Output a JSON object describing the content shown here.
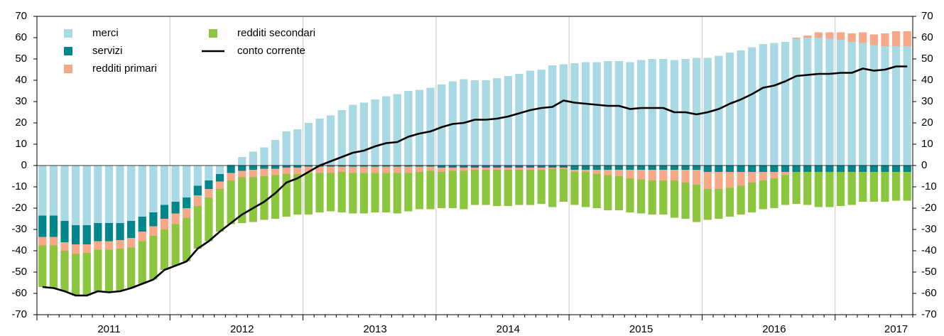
{
  "chart_data": {
    "type": "bar",
    "stacked": true,
    "legend": "upper left",
    "categories": [
      null,
      null,
      null,
      null,
      null,
      null,
      "2011",
      null,
      null,
      null,
      null,
      null,
      null,
      null,
      null,
      null,
      null,
      null,
      "2012",
      null,
      null,
      null,
      null,
      null,
      null,
      null,
      null,
      null,
      null,
      null,
      "2013",
      null,
      null,
      null,
      null,
      null,
      null,
      null,
      null,
      null,
      null,
      null,
      "2014",
      null,
      null,
      null,
      null,
      null,
      null,
      null,
      null,
      null,
      null,
      null,
      "2015",
      null,
      null,
      null,
      null,
      null,
      null,
      null,
      null,
      null,
      null,
      null,
      "2016",
      null,
      null,
      null,
      null,
      null,
      null,
      null,
      null,
      null,
      null,
      "2017",
      null
    ],
    "ylim": [
      -70,
      70
    ],
    "yticks": [
      -70,
      -60,
      -50,
      -40,
      -30,
      -20,
      -10,
      0,
      10,
      20,
      30,
      40,
      50,
      60,
      70
    ],
    "y2lim": [
      -70,
      70
    ],
    "y2ticks": [
      -70,
      -60,
      -50,
      -40,
      -30,
      -20,
      -10,
      0,
      10,
      20,
      30,
      40,
      50,
      60,
      70
    ],
    "series": [
      {
        "name": "merci",
        "color": "#a9d9e3",
        "values": [
          -23.5,
          -23.5,
          -26,
          -28,
          -28,
          -27,
          -27,
          -27,
          -26,
          -24,
          -22,
          -18.5,
          -17,
          -15,
          -9.5,
          -7,
          -4,
          0.5,
          4,
          6.5,
          8.5,
          12,
          16,
          17,
          20,
          22,
          23.5,
          26,
          28.5,
          29.5,
          31,
          32.5,
          33.5,
          35,
          35.5,
          36.5,
          38,
          39.5,
          40.5,
          40,
          40,
          41,
          42,
          43,
          44.5,
          45,
          47,
          47.5,
          48,
          48.5,
          48.5,
          49,
          49,
          48.5,
          49.5,
          50,
          50,
          49.5,
          50,
          50.5,
          50.5,
          51.5,
          53,
          54,
          55.5,
          57,
          57.5,
          58,
          59.5,
          60,
          60,
          59.5,
          59,
          58,
          57.5,
          56.5,
          56,
          56,
          56
        ]
      },
      {
        "name": "servizi",
        "color": "#00868b",
        "values": [
          -10,
          -10,
          -10,
          -9,
          -9,
          -8.5,
          -8.5,
          -8,
          -8,
          -7,
          -6.5,
          -6.5,
          -5.5,
          -5,
          -4.5,
          -4,
          -3.5,
          -3.5,
          -2.5,
          -2,
          -1.5,
          -1.5,
          -1,
          -1,
          -0.5,
          -0.5,
          -0.5,
          -0.5,
          -0.5,
          -0.5,
          -0.5,
          -0.5,
          -0.5,
          -0.5,
          -0.5,
          -0.5,
          -1,
          -1,
          -1,
          -1,
          -1,
          -1,
          -1,
          -1,
          -1,
          -1,
          -1,
          -1,
          -2,
          -2,
          -2,
          -2,
          -2,
          -2,
          -2,
          -2,
          -2,
          -2,
          -2,
          -2,
          -3,
          -3,
          -3,
          -3,
          -3,
          -3,
          -3,
          -3,
          -3,
          -3,
          -3,
          -3,
          -3,
          -3,
          -3,
          -3,
          -3,
          -3,
          -3
        ]
      },
      {
        "name": "redditi primari",
        "color": "#f7a889",
        "values": [
          -4,
          -4,
          -4,
          -4.5,
          -4,
          -4,
          -4,
          -4,
          -4.5,
          -4.5,
          -4.5,
          -5,
          -5,
          -4.5,
          -5,
          -4,
          -3.5,
          -3.5,
          -3,
          -3.5,
          -3.5,
          -3,
          -3,
          -3,
          -3,
          -3,
          -3,
          -2.5,
          -3,
          -3,
          -3,
          -3,
          -3,
          -3,
          -2.5,
          -2,
          -2,
          -1.5,
          -1.5,
          -1,
          -1,
          -1,
          -1,
          -1,
          -1,
          -1,
          -0.5,
          -0.5,
          -1,
          -1,
          -2,
          -2.5,
          -3,
          -4,
          -4.5,
          -5,
          -5,
          -5,
          -6,
          -7,
          -8,
          -8,
          -7.5,
          -6.5,
          -5,
          -4,
          -3,
          -1.5,
          0.5,
          1,
          2.5,
          3,
          3.5,
          4,
          5,
          5,
          6,
          7,
          7
        ]
      },
      {
        "name": "redditi secondari",
        "color": "#8cc63e",
        "values": [
          -19.5,
          -20,
          -19,
          -19.5,
          -20,
          -19.5,
          -20,
          -20,
          -19,
          -20,
          -20.5,
          -19,
          -19.5,
          -20.5,
          -20,
          -20.5,
          -20,
          -20.5,
          -21.5,
          -21,
          -20.5,
          -20.5,
          -20,
          -19,
          -19.5,
          -18.5,
          -18,
          -19,
          -19,
          -19,
          -18.5,
          -18.5,
          -19,
          -18,
          -17.5,
          -18,
          -17,
          -17.5,
          -18,
          -16.5,
          -16.5,
          -17,
          -17,
          -16.5,
          -16.5,
          -16,
          -18,
          -15.5,
          -15.5,
          -16.5,
          -16,
          -16.5,
          -16,
          -16,
          -16,
          -16,
          -16,
          -17.5,
          -17,
          -17.5,
          -14.5,
          -14,
          -13.5,
          -13.5,
          -14,
          -13.5,
          -14,
          -14,
          -15,
          -15.5,
          -16.5,
          -16.5,
          -16,
          -15.5,
          -14,
          -14,
          -14,
          -13.5,
          -13.5
        ]
      },
      {
        "name": "conto corrente",
        "type": "line",
        "color": "#000000",
        "values": [
          -57,
          -57.5,
          -59,
          -61,
          -61,
          -59,
          -59.5,
          -59,
          -57.5,
          -55.5,
          -53.5,
          -49,
          -47,
          -45,
          -39,
          -35.5,
          -31,
          -27,
          -23,
          -20,
          -17,
          -13,
          -8,
          -6,
          -3,
          0,
          2,
          4,
          6,
          7,
          9,
          10.5,
          11,
          13.5,
          15,
          16,
          18,
          19.5,
          20,
          21.5,
          21.5,
          22,
          23,
          24.5,
          26,
          27,
          27.5,
          30.5,
          29.5,
          29,
          28.5,
          28,
          28,
          26.5,
          27,
          27,
          27,
          25,
          25,
          24,
          25,
          26.5,
          29,
          31,
          33.5,
          36.5,
          37.5,
          39.5,
          42,
          42.5,
          43,
          43,
          43.5,
          43.5,
          45.5,
          44.5,
          45,
          46.5,
          46.5
        ]
      }
    ]
  }
}
